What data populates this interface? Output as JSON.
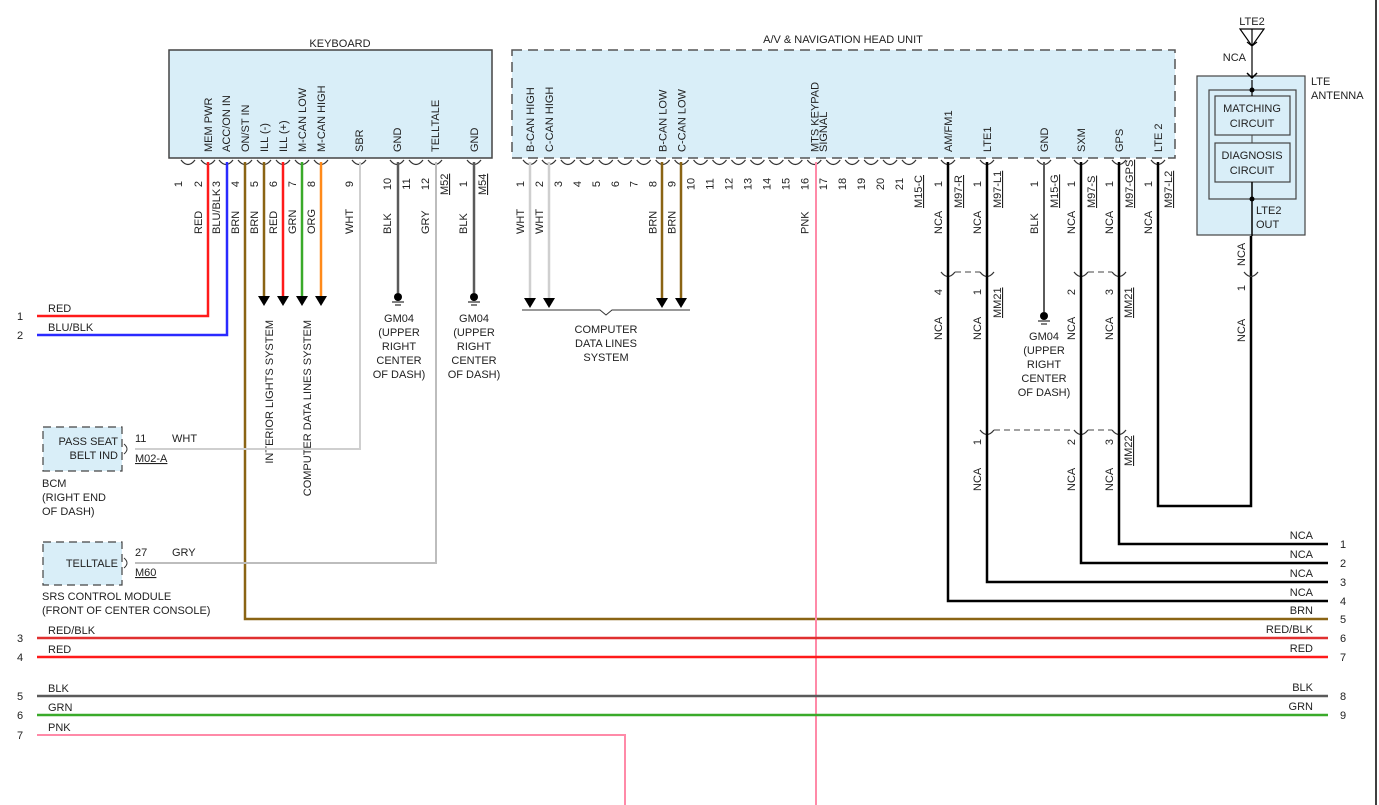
{
  "keyboard": {
    "title": "KEYBOARD",
    "pins": [
      {
        "num": "1",
        "func": "",
        "wire": ""
      },
      {
        "num": "2",
        "func": "MEM PWR",
        "wire": "RED"
      },
      {
        "num": "3",
        "func": "ACC/ON IN",
        "wire": "BLU/BLK"
      },
      {
        "num": "4",
        "func": "ON/ST IN",
        "wire": "BRN"
      },
      {
        "num": "5",
        "func": "ILL (-)",
        "wire": "BRN"
      },
      {
        "num": "6",
        "func": "ILL (+)",
        "wire": "RED"
      },
      {
        "num": "7",
        "func": "M-CAN LOW",
        "wire": "GRN"
      },
      {
        "num": "8",
        "func": "M-CAN HIGH",
        "wire": "ORG"
      },
      {
        "num": "9",
        "func": "SBR",
        "wire": "WHT"
      },
      {
        "num": "10",
        "func": "GND",
        "wire": "BLK"
      },
      {
        "num": "11",
        "func": "",
        "wire": ""
      },
      {
        "num": "12",
        "func": "TELLTALE",
        "wire": "GRY"
      }
    ],
    "connector": "M52",
    "ground_pin": {
      "num": "1",
      "func": "GND",
      "wire": "BLK",
      "connector": "M54"
    },
    "interior_lights": "INTERIOR LIGHTS SYSTEM",
    "computer_data_lines": "COMPUTER DATA LINES SYSTEM"
  },
  "ground": {
    "name": "GM04",
    "location": [
      "(UPPER",
      "RIGHT",
      "CENTER",
      "OF DASH)"
    ]
  },
  "head_unit": {
    "title": "A/V & NAVIGATION HEAD UNIT",
    "pins": [
      {
        "num": "1",
        "func": "B-CAN HIGH",
        "wire": "WHT"
      },
      {
        "num": "2",
        "func": "C-CAN HIGH",
        "wire": "WHT"
      },
      {
        "num": "3",
        "func": "",
        "wire": ""
      },
      {
        "num": "4",
        "func": "",
        "wire": ""
      },
      {
        "num": "5",
        "func": "",
        "wire": ""
      },
      {
        "num": "6",
        "func": "",
        "wire": ""
      },
      {
        "num": "7",
        "func": "",
        "wire": ""
      },
      {
        "num": "8",
        "func": "B-CAN LOW",
        "wire": "BRN"
      },
      {
        "num": "9",
        "func": "C-CAN LOW",
        "wire": "BRN"
      },
      {
        "num": "10",
        "func": "",
        "wire": ""
      },
      {
        "num": "11",
        "func": "",
        "wire": ""
      },
      {
        "num": "12",
        "func": "",
        "wire": ""
      },
      {
        "num": "13",
        "func": "",
        "wire": ""
      },
      {
        "num": "14",
        "func": "",
        "wire": ""
      },
      {
        "num": "15",
        "func": "",
        "wire": ""
      },
      {
        "num": "16",
        "func": "MTS KEYPAD",
        "wire": "PNK"
      },
      {
        "num": "17",
        "func": "SIGNAL",
        "wire": ""
      },
      {
        "num": "18",
        "func": "",
        "wire": ""
      },
      {
        "num": "19",
        "func": "",
        "wire": ""
      },
      {
        "num": "20",
        "func": "",
        "wire": ""
      },
      {
        "num": "21",
        "func": "",
        "wire": ""
      }
    ],
    "connector": "M15-C",
    "data_lines_label": [
      "COMPUTER",
      "DATA LINES",
      "SYSTEM"
    ],
    "rf_pins": [
      {
        "num": "1",
        "func": "AM/FM1",
        "wire": "NCA",
        "connector": "M97-R",
        "mm21_pin": "4",
        "mm21_wire": "NCA"
      },
      {
        "num": "1",
        "func": "LTE1",
        "wire": "NCA",
        "connector": "M97-L1",
        "mm21_pin": "1",
        "mm21_wire": "NCA",
        "mm22_pin": "1",
        "mm22_wire": "NCA"
      },
      {
        "num": "1",
        "func": "GND",
        "wire": "BLK",
        "connector": "M15-G"
      },
      {
        "num": "1",
        "func": "SXM",
        "wire": "NCA",
        "connector": "M97-S",
        "mm21_pin": "2",
        "mm21_wire": "NCA",
        "mm22_pin": "2",
        "mm22_wire": "NCA"
      },
      {
        "num": "1",
        "func": "GPS",
        "wire": "NCA",
        "connector": "M97-GPS",
        "mm21_pin": "3",
        "mm21_wire": "NCA",
        "mm22_pin": "3",
        "mm22_wire": "NCA"
      },
      {
        "num": "1",
        "func": "LTE 2",
        "wire": "NCA",
        "connector": "M97-L2"
      }
    ],
    "mm21": "MM21",
    "mm22": "MM22"
  },
  "lte_antenna": {
    "title": [
      "LTE",
      "ANTENNA"
    ],
    "antenna_label": "LTE2",
    "antenna_wire": "NCA",
    "matching": [
      "MATCHING",
      "CIRCUIT"
    ],
    "diagnosis": [
      "DIAGNOSIS",
      "CIRCUIT"
    ],
    "out": [
      "LTE2",
      "OUT"
    ],
    "out_wire": "NCA",
    "out_pin": "1",
    "out_wire2": "NCA"
  },
  "bcm": {
    "box": [
      "PASS SEAT",
      "BELT IND"
    ],
    "pin": "11",
    "wire": "WHT",
    "connector": "M02-A",
    "label": [
      "BCM",
      "(RIGHT END",
      "OF DASH)"
    ]
  },
  "srs": {
    "box": "TELLTALE",
    "pin": "27",
    "wire": "GRY",
    "connector": "M60",
    "label": [
      "SRS CONTROL MODULE",
      "(FRONT OF CENTER CONSOLE)"
    ]
  },
  "left_lines": [
    {
      "num": "1",
      "wire": "RED"
    },
    {
      "num": "2",
      "wire": "BLU/BLK"
    },
    {
      "num": "3",
      "wire": "RED/BLK"
    },
    {
      "num": "4",
      "wire": "RED"
    },
    {
      "num": "5",
      "wire": "BLK"
    },
    {
      "num": "6",
      "wire": "GRN"
    },
    {
      "num": "7",
      "wire": "PNK"
    }
  ],
  "right_lines": [
    {
      "num": "1",
      "wire": "NCA"
    },
    {
      "num": "2",
      "wire": "NCA"
    },
    {
      "num": "3",
      "wire": "NCA"
    },
    {
      "num": "4",
      "wire": "NCA"
    },
    {
      "num": "5",
      "wire": "BRN"
    },
    {
      "num": "6",
      "wire": "RED/BLK"
    },
    {
      "num": "7",
      "wire": "RED"
    },
    {
      "num": "8",
      "wire": "BLK"
    },
    {
      "num": "9",
      "wire": "GRN"
    }
  ],
  "colors": {
    "RED": "#ff1a1a",
    "BLU/BLK": "#2a2aff",
    "BRN": "#8a6414",
    "GRN": "#3aaa2a",
    "ORG": "#ff8a1a",
    "WHT": "#cfcfcf",
    "BLK": "#5a5a5a",
    "GRY": "#bdbdbd",
    "PNK": "#ff8aa8",
    "RED/BLK": "#e03030",
    "NCA": "#000000",
    "box_fill": "#d9eef8"
  }
}
